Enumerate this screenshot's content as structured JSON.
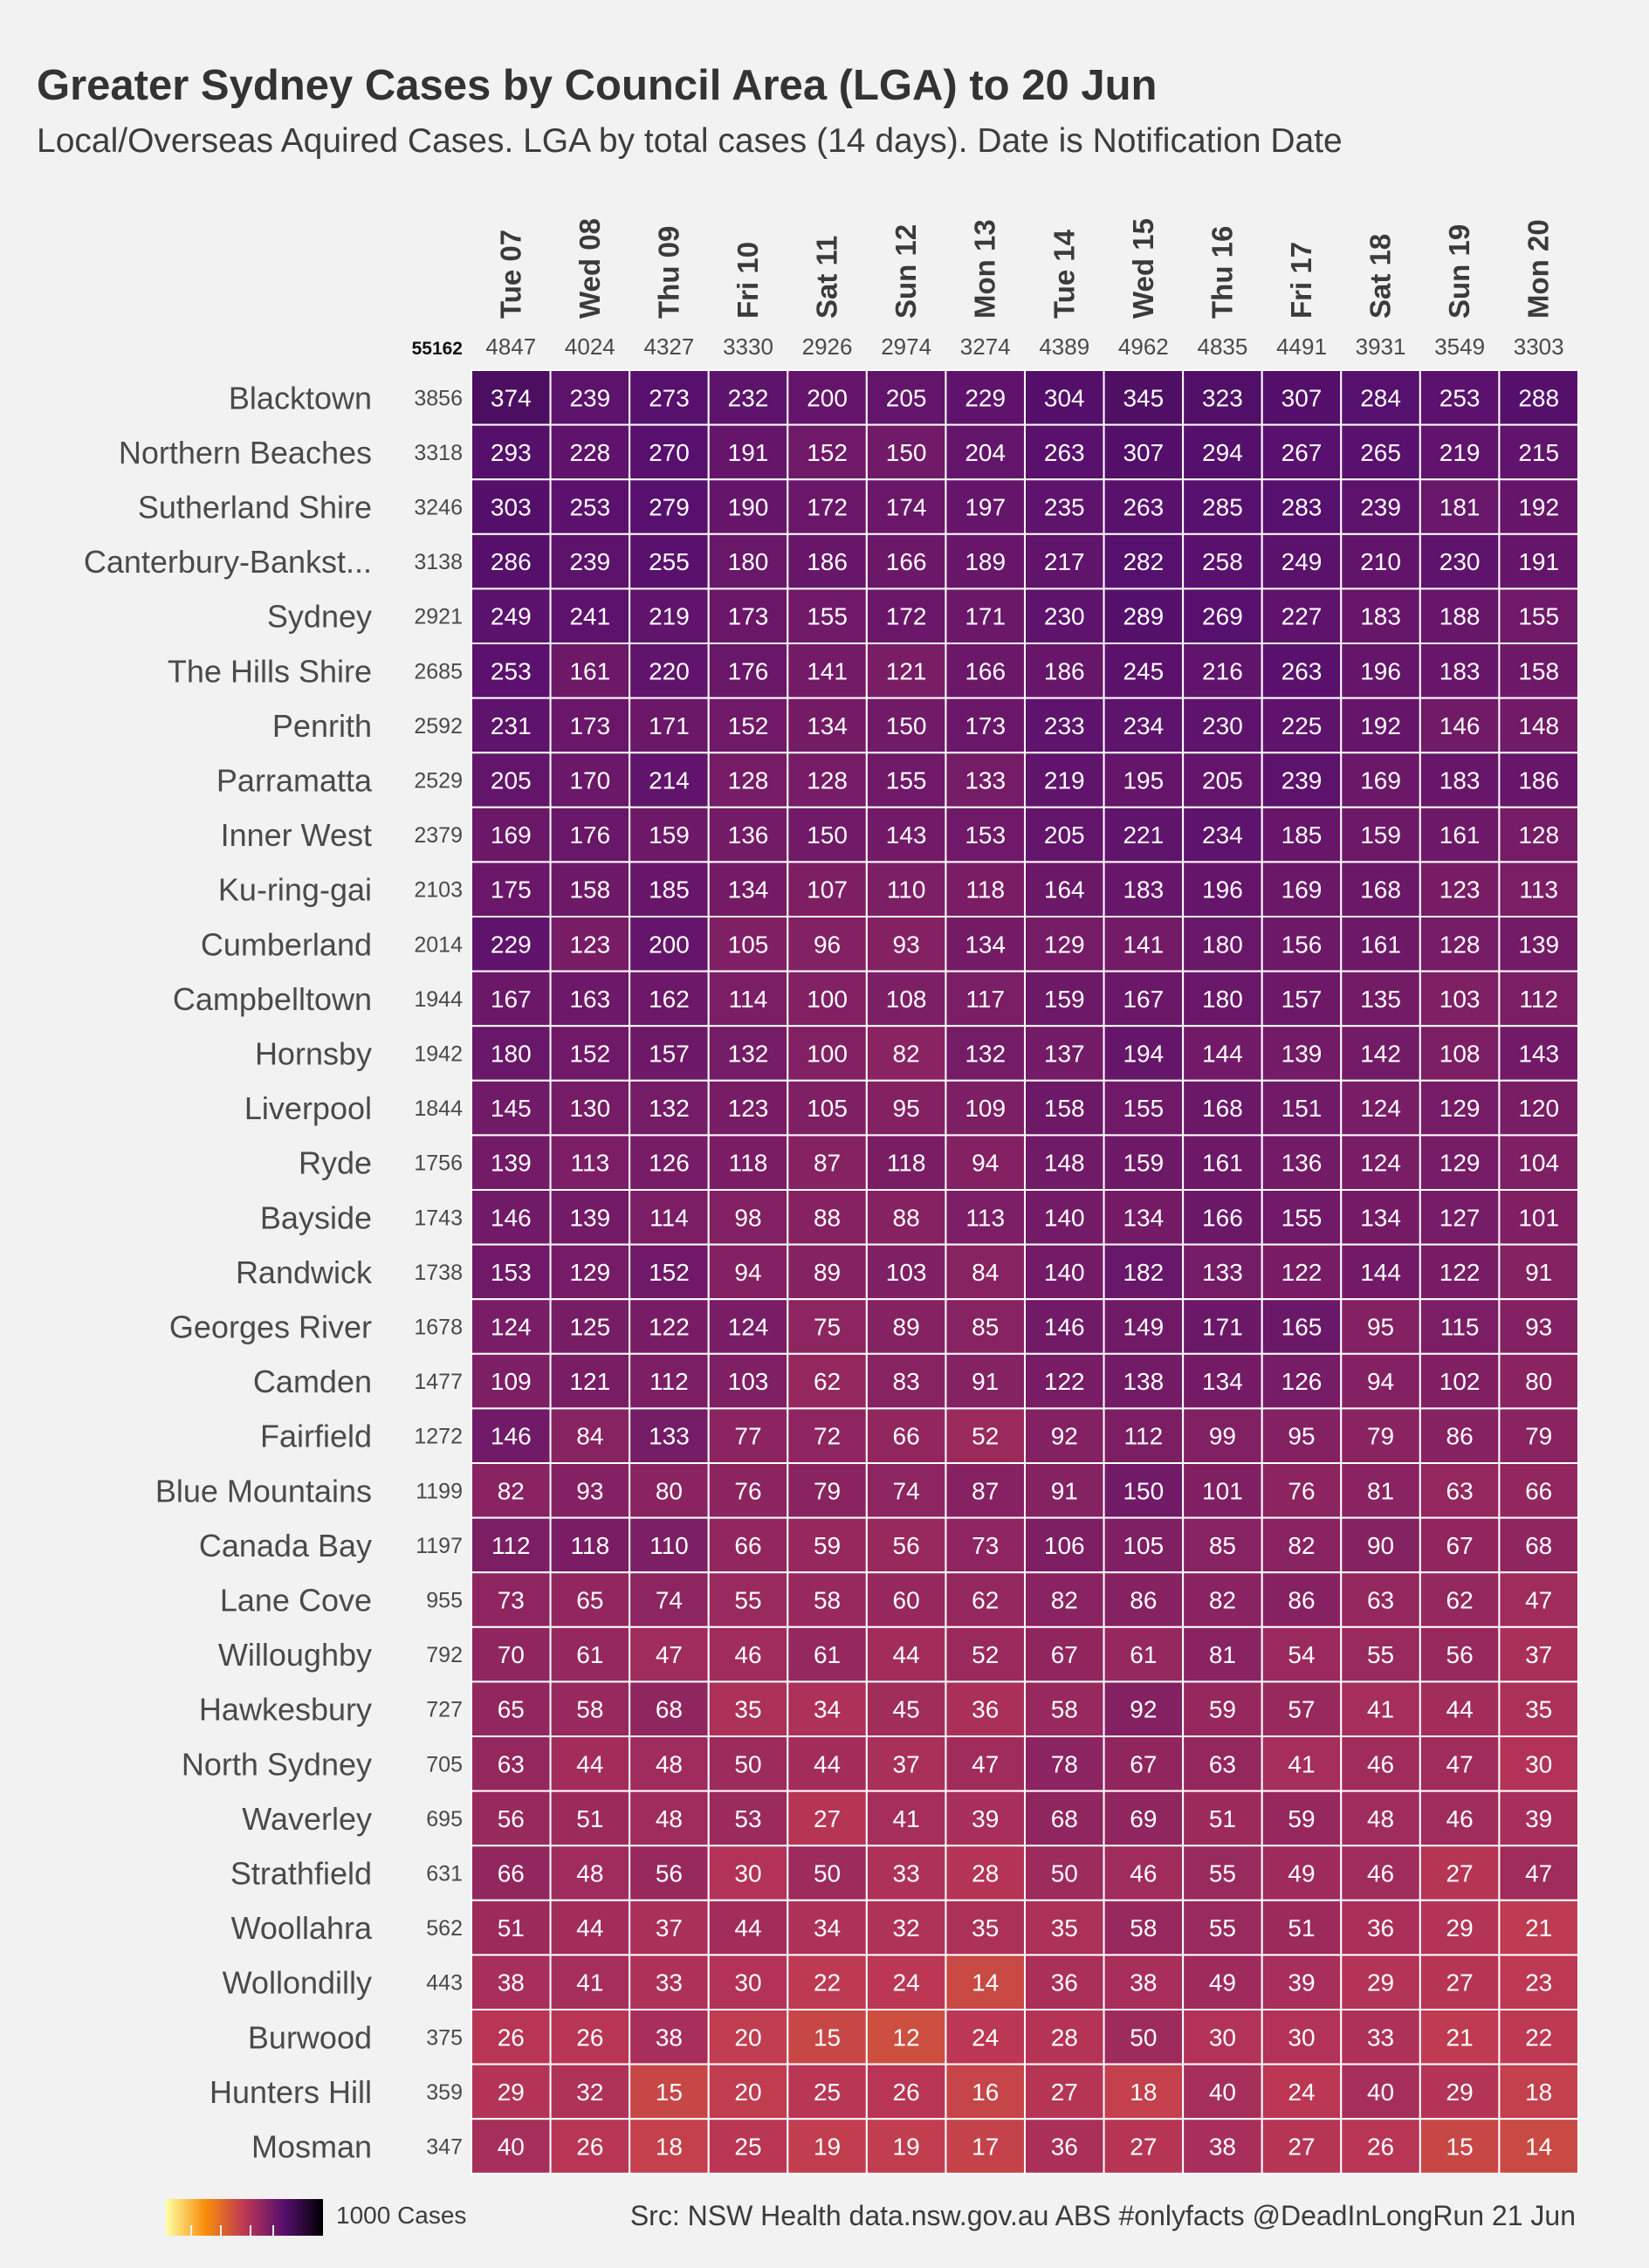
{
  "title": "Greater Sydney Cases by Council Area (LGA) to 20 Jun",
  "subtitle": "Local/Overseas Aquired Cases. LGA by total cases (14 days). Date is Notification Date",
  "legend_label": "1000 Cases",
  "source": "Src: NSW Health data.nsw.gov.au ABS #onlyfacts @DeadInLongRun 21 Jun",
  "chart_data": {
    "type": "heatmap",
    "grand_total": "55162",
    "columns": [
      "Tue 07",
      "Wed 08",
      "Thu 09",
      "Fri 10",
      "Sat 11",
      "Sun 12",
      "Mon 13",
      "Tue 14",
      "Wed 15",
      "Thu 16",
      "Fri 17",
      "Sat 18",
      "Sun 19",
      "Mon 20"
    ],
    "column_totals": [
      "4847",
      "4024",
      "4327",
      "3330",
      "2926",
      "2974",
      "3274",
      "4389",
      "4962",
      "4835",
      "4491",
      "3931",
      "3549",
      "3303"
    ],
    "rows": [
      {
        "lga": "Blacktown",
        "total": "3856",
        "values": [
          374,
          239,
          273,
          232,
          200,
          205,
          229,
          304,
          345,
          323,
          307,
          284,
          253,
          288
        ]
      },
      {
        "lga": "Northern Beaches",
        "total": "3318",
        "values": [
          293,
          228,
          270,
          191,
          152,
          150,
          204,
          263,
          307,
          294,
          267,
          265,
          219,
          215
        ]
      },
      {
        "lga": "Sutherland Shire",
        "total": "3246",
        "values": [
          303,
          253,
          279,
          190,
          172,
          174,
          197,
          235,
          263,
          285,
          283,
          239,
          181,
          192
        ]
      },
      {
        "lga": "Canterbury-Bankst...",
        "total": "3138",
        "values": [
          286,
          239,
          255,
          180,
          186,
          166,
          189,
          217,
          282,
          258,
          249,
          210,
          230,
          191
        ]
      },
      {
        "lga": "Sydney",
        "total": "2921",
        "values": [
          249,
          241,
          219,
          173,
          155,
          172,
          171,
          230,
          289,
          269,
          227,
          183,
          188,
          155
        ]
      },
      {
        "lga": "The Hills Shire",
        "total": "2685",
        "values": [
          253,
          161,
          220,
          176,
          141,
          121,
          166,
          186,
          245,
          216,
          263,
          196,
          183,
          158
        ]
      },
      {
        "lga": "Penrith",
        "total": "2592",
        "values": [
          231,
          173,
          171,
          152,
          134,
          150,
          173,
          233,
          234,
          230,
          225,
          192,
          146,
          148
        ]
      },
      {
        "lga": "Parramatta",
        "total": "2529",
        "values": [
          205,
          170,
          214,
          128,
          128,
          155,
          133,
          219,
          195,
          205,
          239,
          169,
          183,
          186
        ]
      },
      {
        "lga": "Inner West",
        "total": "2379",
        "values": [
          169,
          176,
          159,
          136,
          150,
          143,
          153,
          205,
          221,
          234,
          185,
          159,
          161,
          128
        ]
      },
      {
        "lga": "Ku-ring-gai",
        "total": "2103",
        "values": [
          175,
          158,
          185,
          134,
          107,
          110,
          118,
          164,
          183,
          196,
          169,
          168,
          123,
          113
        ]
      },
      {
        "lga": "Cumberland",
        "total": "2014",
        "values": [
          229,
          123,
          200,
          105,
          96,
          93,
          134,
          129,
          141,
          180,
          156,
          161,
          128,
          139
        ]
      },
      {
        "lga": "Campbelltown",
        "total": "1944",
        "values": [
          167,
          163,
          162,
          114,
          100,
          108,
          117,
          159,
          167,
          180,
          157,
          135,
          103,
          112
        ]
      },
      {
        "lga": "Hornsby",
        "total": "1942",
        "values": [
          180,
          152,
          157,
          132,
          100,
          82,
          132,
          137,
          194,
          144,
          139,
          142,
          108,
          143
        ]
      },
      {
        "lga": "Liverpool",
        "total": "1844",
        "values": [
          145,
          130,
          132,
          123,
          105,
          95,
          109,
          158,
          155,
          168,
          151,
          124,
          129,
          120
        ]
      },
      {
        "lga": "Ryde",
        "total": "1756",
        "values": [
          139,
          113,
          126,
          118,
          87,
          118,
          94,
          148,
          159,
          161,
          136,
          124,
          129,
          104
        ]
      },
      {
        "lga": "Bayside",
        "total": "1743",
        "values": [
          146,
          139,
          114,
          98,
          88,
          88,
          113,
          140,
          134,
          166,
          155,
          134,
          127,
          101
        ]
      },
      {
        "lga": "Randwick",
        "total": "1738",
        "values": [
          153,
          129,
          152,
          94,
          89,
          103,
          84,
          140,
          182,
          133,
          122,
          144,
          122,
          91
        ]
      },
      {
        "lga": "Georges River",
        "total": "1678",
        "values": [
          124,
          125,
          122,
          124,
          75,
          89,
          85,
          146,
          149,
          171,
          165,
          95,
          115,
          93
        ]
      },
      {
        "lga": "Camden",
        "total": "1477",
        "values": [
          109,
          121,
          112,
          103,
          62,
          83,
          91,
          122,
          138,
          134,
          126,
          94,
          102,
          80
        ]
      },
      {
        "lga": "Fairfield",
        "total": "1272",
        "values": [
          146,
          84,
          133,
          77,
          72,
          66,
          52,
          92,
          112,
          99,
          95,
          79,
          86,
          79
        ]
      },
      {
        "lga": "Blue Mountains",
        "total": "1199",
        "values": [
          82,
          93,
          80,
          76,
          79,
          74,
          87,
          91,
          150,
          101,
          76,
          81,
          63,
          66
        ]
      },
      {
        "lga": "Canada Bay",
        "total": "1197",
        "values": [
          112,
          118,
          110,
          66,
          59,
          56,
          73,
          106,
          105,
          85,
          82,
          90,
          67,
          68
        ]
      },
      {
        "lga": "Lane Cove",
        "total": "955",
        "values": [
          73,
          65,
          74,
          55,
          58,
          60,
          62,
          82,
          86,
          82,
          86,
          63,
          62,
          47
        ]
      },
      {
        "lga": "Willoughby",
        "total": "792",
        "values": [
          70,
          61,
          47,
          46,
          61,
          44,
          52,
          67,
          61,
          81,
          54,
          55,
          56,
          37
        ]
      },
      {
        "lga": "Hawkesbury",
        "total": "727",
        "values": [
          65,
          58,
          68,
          35,
          34,
          45,
          36,
          58,
          92,
          59,
          57,
          41,
          44,
          35
        ]
      },
      {
        "lga": "North Sydney",
        "total": "705",
        "values": [
          63,
          44,
          48,
          50,
          44,
          37,
          47,
          78,
          67,
          63,
          41,
          46,
          47,
          30
        ]
      },
      {
        "lga": "Waverley",
        "total": "695",
        "values": [
          56,
          51,
          48,
          53,
          27,
          41,
          39,
          68,
          69,
          51,
          59,
          48,
          46,
          39
        ]
      },
      {
        "lga": "Strathfield",
        "total": "631",
        "values": [
          66,
          48,
          56,
          30,
          50,
          33,
          28,
          50,
          46,
          55,
          49,
          46,
          27,
          47
        ]
      },
      {
        "lga": "Woollahra",
        "total": "562",
        "values": [
          51,
          44,
          37,
          44,
          34,
          32,
          35,
          35,
          58,
          55,
          51,
          36,
          29,
          21
        ]
      },
      {
        "lga": "Wollondilly",
        "total": "443",
        "values": [
          38,
          41,
          33,
          30,
          22,
          24,
          14,
          36,
          38,
          49,
          39,
          29,
          27,
          23
        ]
      },
      {
        "lga": "Burwood",
        "total": "375",
        "values": [
          26,
          26,
          38,
          20,
          15,
          12,
          24,
          28,
          50,
          30,
          30,
          33,
          21,
          22
        ]
      },
      {
        "lga": "Hunters Hill",
        "total": "359",
        "values": [
          29,
          32,
          15,
          20,
          25,
          26,
          16,
          27,
          18,
          40,
          24,
          40,
          29,
          18
        ]
      },
      {
        "lga": "Mosman",
        "total": "347",
        "values": [
          40,
          26,
          18,
          25,
          19,
          19,
          17,
          36,
          27,
          38,
          27,
          26,
          15,
          14
        ]
      }
    ],
    "colormap": [
      "#fcffa4",
      "#f98e09",
      "#bc3754",
      "#57106e",
      "#000004"
    ],
    "value_scale": "log"
  }
}
